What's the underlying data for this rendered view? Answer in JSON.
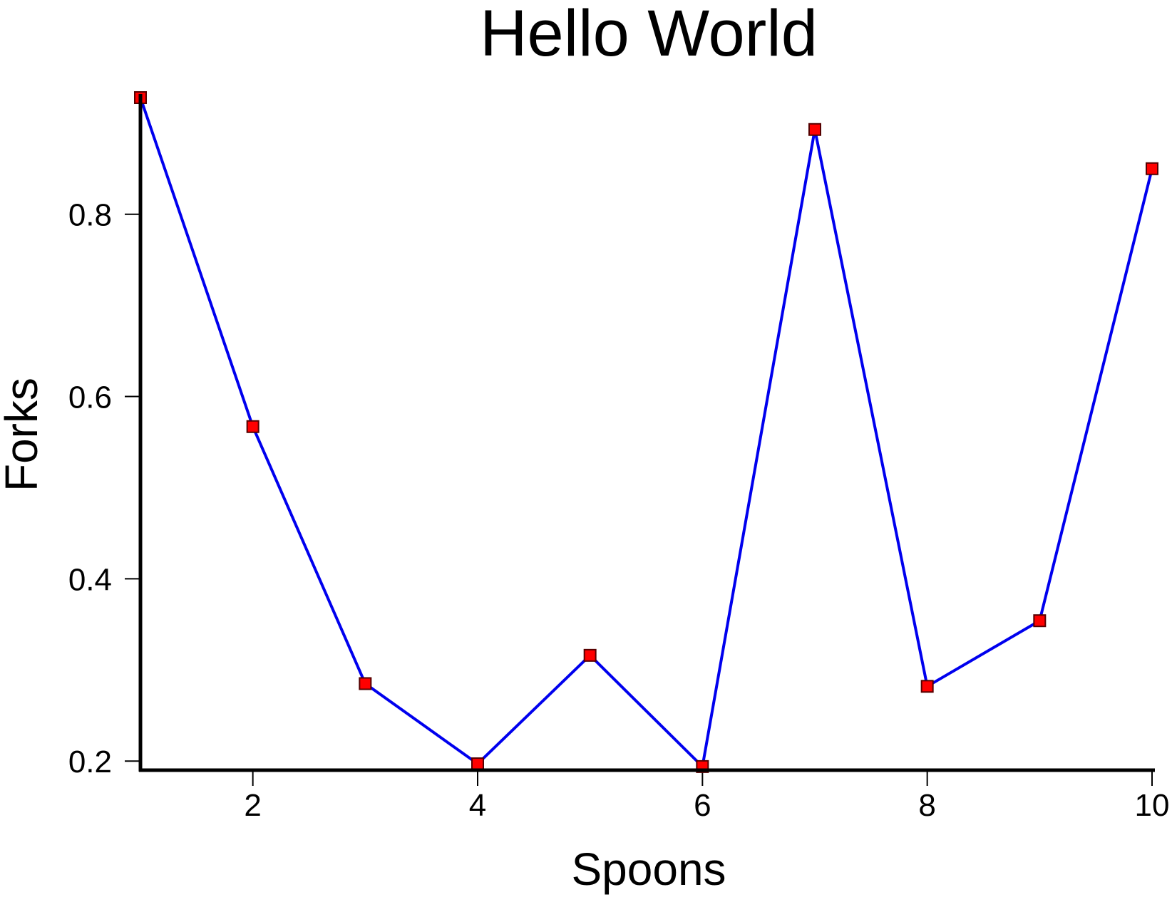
{
  "chart_data": {
    "type": "line",
    "title": "Hello World",
    "xlabel": "Spoons",
    "ylabel": "Forks",
    "x": [
      1,
      2,
      3,
      4,
      5,
      6,
      7,
      8,
      9,
      10
    ],
    "series": [
      {
        "values": [
          0.928,
          0.567,
          0.285,
          0.197,
          0.316,
          0.194,
          0.893,
          0.282,
          0.354,
          0.85
        ],
        "line_color": "#0000ee",
        "marker": "square",
        "marker_fill": "#ff0000",
        "marker_edge": "#550000"
      }
    ],
    "xlim": [
      1,
      10
    ],
    "ylim": [
      0.19,
      0.928
    ],
    "xticks": [
      2,
      4,
      6,
      8,
      10
    ],
    "xtick_labels": [
      "2",
      "4",
      "6",
      "8",
      "10"
    ],
    "yticks": [
      0.2,
      0.4,
      0.6,
      0.8
    ],
    "ytick_labels": [
      "0.2",
      "0.4",
      "0.6",
      "0.8"
    ],
    "grid": false,
    "legend": "none",
    "axis_color": "#000000"
  }
}
